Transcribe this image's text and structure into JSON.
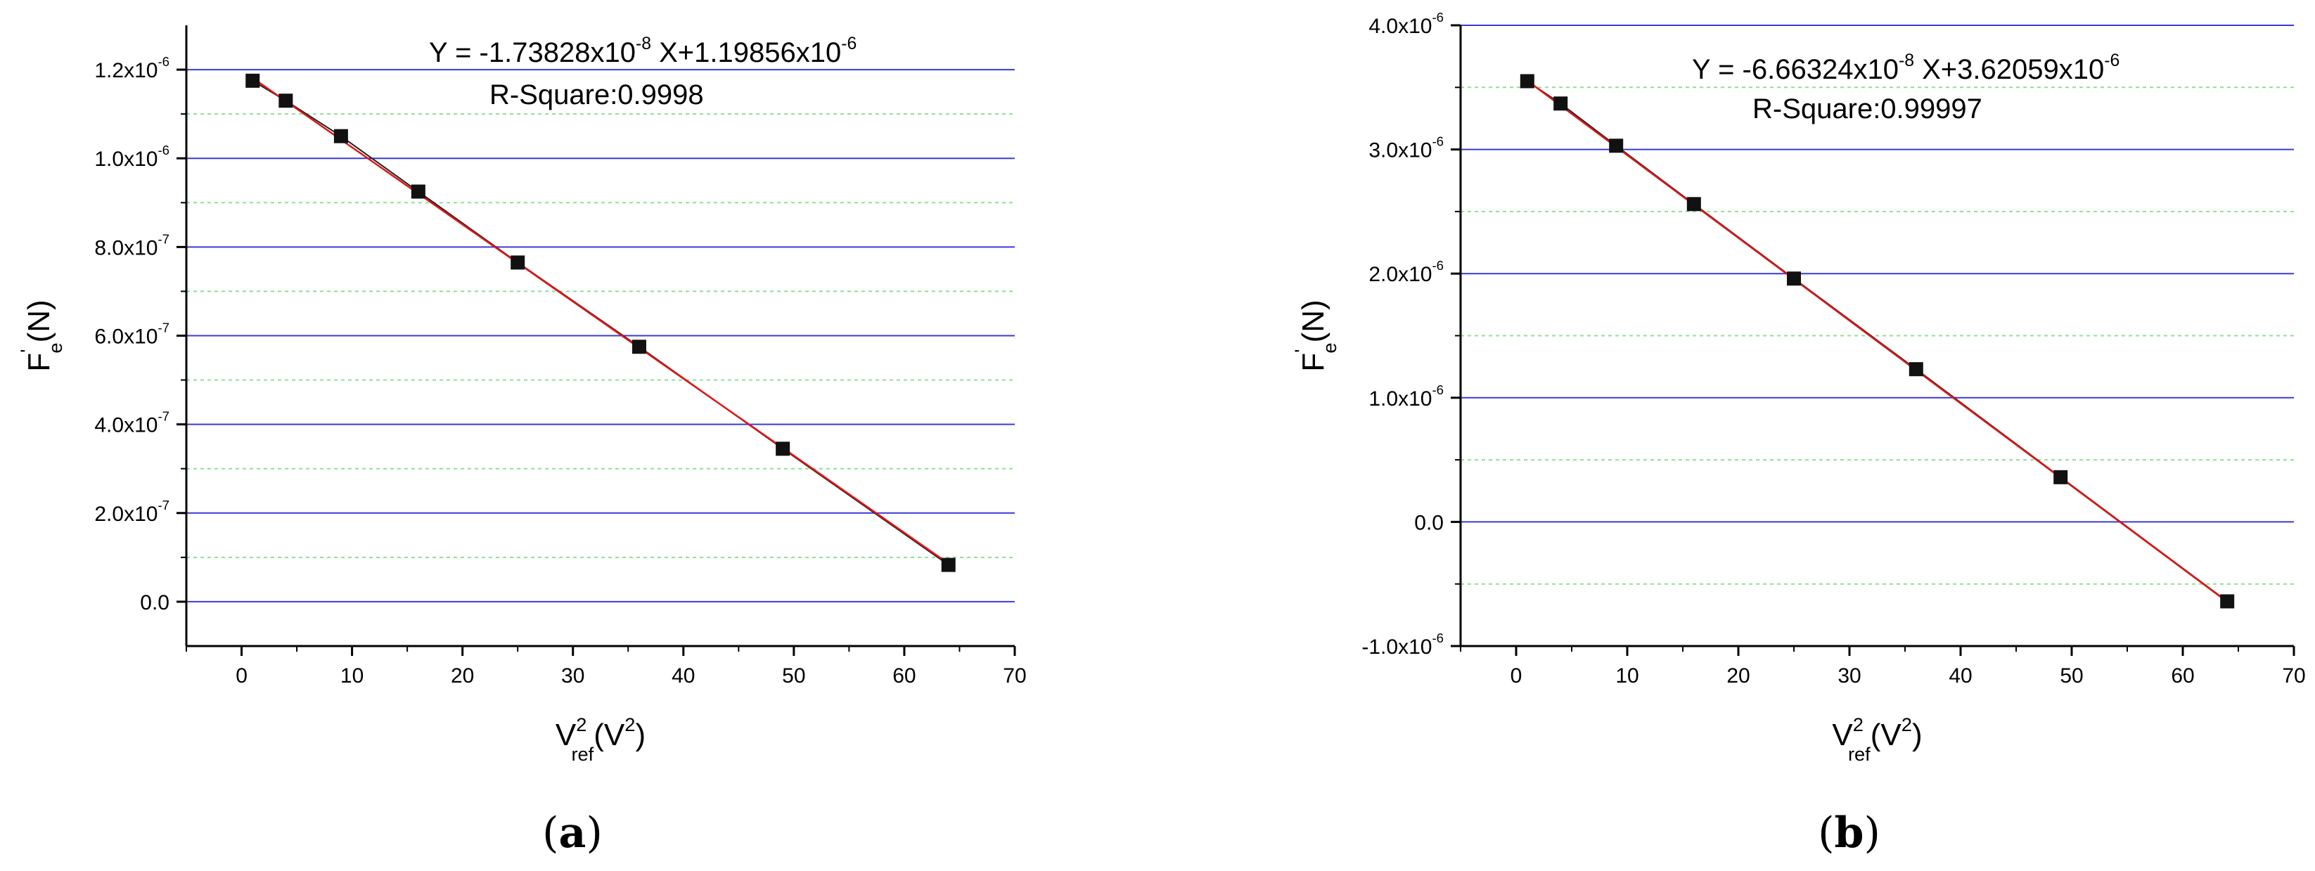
{
  "chart_data": [
    {
      "type": "scatter",
      "panel_label": "(a)",
      "x": [
        1,
        4,
        9,
        16,
        25,
        36,
        49,
        64
      ],
      "y": [
        1.175e-06,
        1.13e-06,
        1.05e-06,
        9.25e-07,
        7.65e-07,
        5.75e-07,
        3.45e-07,
        8.3e-08
      ],
      "fit": {
        "slope": -1.73828e-08,
        "intercept": 1.19856e-06
      },
      "annotation": {
        "equation": [
          "Y = -1.73828x10",
          "-8",
          " X+1.19856x10",
          "-6"
        ],
        "r_square": "R-Square:0.9998"
      },
      "xlabel": {
        "base": "V",
        "sup": "2",
        "sub": "ref",
        "unit_pre": "(V",
        "unit_sup": "2",
        "unit_post": ")"
      },
      "ylabel": {
        "base": "F",
        "sup": "'",
        "sub": "e",
        "unit": "(N)"
      },
      "xlim": [
        -5,
        70
      ],
      "ylim": [
        -1e-07,
        1.3e-06
      ],
      "xticks": [
        {
          "value": 0,
          "label": "0"
        },
        {
          "value": 10,
          "label": "10"
        },
        {
          "value": 20,
          "label": "20"
        },
        {
          "value": 30,
          "label": "30"
        },
        {
          "value": 40,
          "label": "40"
        },
        {
          "value": 50,
          "label": "50"
        },
        {
          "value": 60,
          "label": "60"
        },
        {
          "value": 70,
          "label": "70"
        }
      ],
      "yticks": [
        {
          "value": 0,
          "mant": "0.0",
          "exp": ""
        },
        {
          "value": 2e-07,
          "mant": "2.0x10",
          "exp": "-7"
        },
        {
          "value": 4e-07,
          "mant": "4.0x10",
          "exp": "-7"
        },
        {
          "value": 6e-07,
          "mant": "6.0x10",
          "exp": "-7"
        },
        {
          "value": 8e-07,
          "mant": "8.0x10",
          "exp": "-7"
        },
        {
          "value": 1e-06,
          "mant": "1.0x10",
          "exp": "-6"
        },
        {
          "value": 1.2e-06,
          "mant": "1.2x10",
          "exp": "-6"
        }
      ],
      "minor_grid": [
        1e-07,
        3e-07,
        5e-07,
        7e-07,
        9e-07,
        1.1e-06
      ],
      "grid": true,
      "colors": {
        "major_grid": "#3a3ad6",
        "minor_grid": "#8fe08f",
        "fit_line": "#e01515",
        "marker": "#111111"
      }
    },
    {
      "type": "scatter",
      "panel_label": "(b)",
      "x": [
        1,
        4,
        9,
        16,
        25,
        36,
        49,
        64
      ],
      "y": [
        3.55e-06,
        3.37e-06,
        3.03e-06,
        2.56e-06,
        1.96e-06,
        1.23e-06,
        3.6e-07,
        -6.4e-07
      ],
      "fit": {
        "slope": -6.66324e-08,
        "intercept": 3.62059e-06
      },
      "annotation": {
        "equation": [
          "Y = -6.66324x10",
          "-8",
          " X+3.62059x10",
          "-6"
        ],
        "r_square": "R-Square:0.99997"
      },
      "xlabel": {
        "base": "V",
        "sup": "2",
        "sub": "ref",
        "unit_pre": "(V",
        "unit_sup": "2",
        "unit_post": ")"
      },
      "ylabel": {
        "base": "F",
        "sup": "'",
        "sub": "e",
        "unit": "(N)"
      },
      "xlim": [
        -5,
        70
      ],
      "ylim": [
        -1e-06,
        4e-06
      ],
      "xticks": [
        {
          "value": 0,
          "label": "0"
        },
        {
          "value": 10,
          "label": "10"
        },
        {
          "value": 20,
          "label": "20"
        },
        {
          "value": 30,
          "label": "30"
        },
        {
          "value": 40,
          "label": "40"
        },
        {
          "value": 50,
          "label": "50"
        },
        {
          "value": 60,
          "label": "60"
        },
        {
          "value": 70,
          "label": "70"
        }
      ],
      "yticks": [
        {
          "value": -1e-06,
          "mant": "-1.0x10",
          "exp": "-6"
        },
        {
          "value": 0,
          "mant": "0.0",
          "exp": ""
        },
        {
          "value": 1e-06,
          "mant": "1.0x10",
          "exp": "-6"
        },
        {
          "value": 2e-06,
          "mant": "2.0x10",
          "exp": "-6"
        },
        {
          "value": 3e-06,
          "mant": "3.0x10",
          "exp": "-6"
        },
        {
          "value": 4e-06,
          "mant": "4.0x10",
          "exp": "-6"
        }
      ],
      "minor_grid": [
        -5e-07,
        5e-07,
        1.5e-06,
        2.5e-06,
        3.5e-06
      ],
      "grid": true,
      "colors": {
        "major_grid": "#3a3ad6",
        "minor_grid": "#8fe08f",
        "fit_line": "#e01515",
        "marker": "#111111"
      }
    }
  ]
}
